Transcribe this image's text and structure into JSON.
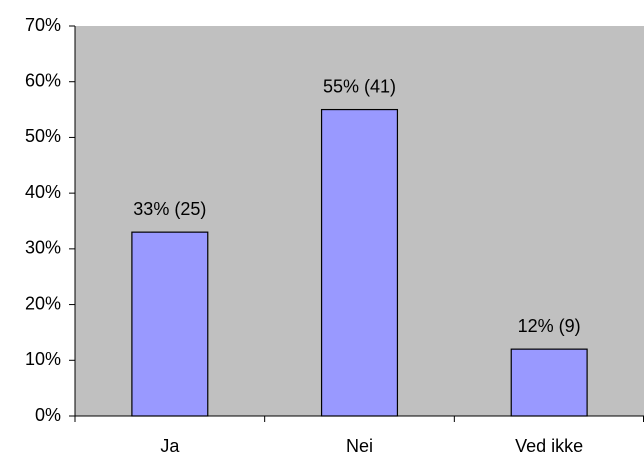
{
  "chart_data": {
    "type": "bar",
    "categories": [
      "Ja",
      "Nei",
      "Ved ikke"
    ],
    "values": [
      33,
      55,
      12
    ],
    "value_labels": [
      "33% (25)",
      "55% (41)",
      "12% (9)"
    ],
    "color": "#9999ff",
    "plot_background": "#c0c0c0",
    "ylim": [
      0,
      70
    ],
    "yticks": [
      {
        "value": 0,
        "label": "0%"
      },
      {
        "value": 10,
        "label": "10%"
      },
      {
        "value": 20,
        "label": "20%"
      },
      {
        "value": 30,
        "label": "30%"
      },
      {
        "value": 40,
        "label": "40%"
      },
      {
        "value": 50,
        "label": "50%"
      },
      {
        "value": 60,
        "label": "60%"
      },
      {
        "value": 70,
        "label": "70%"
      }
    ],
    "grid": false
  }
}
